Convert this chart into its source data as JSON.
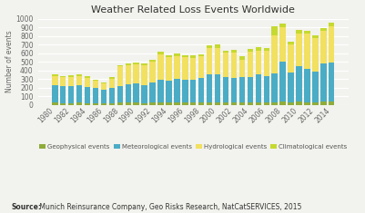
{
  "title": "Weather Related Loss Events Worldwide",
  "ylabel": "Number of events",
  "source_bold": "Source:",
  "source_rest": " Munich Reinsurance Company, Geo Risks Research, NatCatSERVICES, 2015",
  "years": [
    1980,
    1981,
    1982,
    1983,
    1984,
    1985,
    1986,
    1987,
    1988,
    1989,
    1990,
    1991,
    1992,
    1993,
    1994,
    1995,
    1996,
    1997,
    1998,
    1999,
    2000,
    2001,
    2002,
    2003,
    2004,
    2005,
    2006,
    2007,
    2008,
    2009,
    2010,
    2011,
    2012,
    2013,
    2014
  ],
  "geophysical": [
    25,
    20,
    22,
    25,
    22,
    20,
    18,
    22,
    25,
    25,
    28,
    22,
    25,
    28,
    25,
    28,
    30,
    28,
    30,
    32,
    32,
    28,
    25,
    28,
    28,
    30,
    32,
    30,
    35,
    30,
    35,
    32,
    30,
    35,
    38
  ],
  "meteorological": [
    205,
    195,
    195,
    200,
    185,
    175,
    160,
    175,
    195,
    215,
    225,
    210,
    230,
    265,
    260,
    270,
    265,
    260,
    280,
    320,
    325,
    290,
    285,
    290,
    290,
    320,
    305,
    335,
    470,
    340,
    410,
    385,
    355,
    440,
    455
  ],
  "hydrological": [
    100,
    105,
    105,
    110,
    105,
    85,
    72,
    105,
    225,
    220,
    218,
    225,
    250,
    295,
    270,
    265,
    258,
    260,
    258,
    305,
    305,
    285,
    295,
    208,
    300,
    275,
    285,
    445,
    395,
    330,
    385,
    410,
    390,
    380,
    420
  ],
  "climatological": [
    22,
    18,
    18,
    20,
    20,
    15,
    12,
    18,
    14,
    18,
    22,
    20,
    22,
    25,
    22,
    28,
    22,
    22,
    22,
    32,
    35,
    28,
    28,
    40,
    25,
    40,
    35,
    105,
    38,
    28,
    38,
    35,
    32,
    38,
    42
  ],
  "colors": {
    "geophysical": "#8fac3a",
    "meteorological": "#4bacc6",
    "hydrological": "#f2e060",
    "climatological": "#c5d930"
  },
  "ylim": [
    0,
    1000
  ],
  "yticks": [
    0,
    100,
    200,
    300,
    400,
    500,
    600,
    700,
    800,
    900,
    1000
  ],
  "bg_color": "#f2f2ee",
  "grid_color": "#ffffff",
  "legend_labels": [
    "Geophysical events",
    "Meteorological events",
    "Hydrological events",
    "Climatological events"
  ]
}
